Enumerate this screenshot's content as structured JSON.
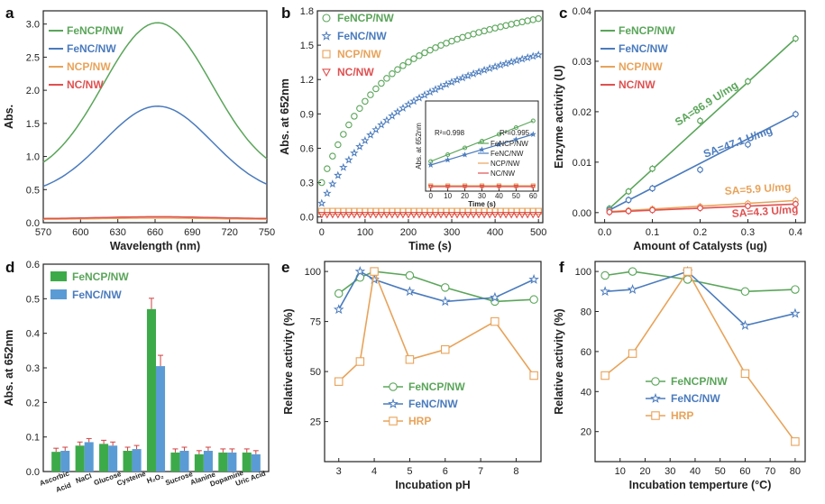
{
  "colors": {
    "green": "#5aa55a",
    "blue": "#4a7bbd",
    "orange": "#e8a35a",
    "red": "#e05050",
    "bar_green": "#3daa4a",
    "bar_blue": "#5b9bd5",
    "err": "#d04040"
  },
  "chart_data": [
    {
      "panel": "a",
      "type": "line",
      "xlabel": "Wavelength (nm)",
      "ylabel": "Abs.",
      "xlim": [
        570,
        750
      ],
      "ylim": [
        0,
        3.2
      ],
      "xticks": [
        570,
        600,
        630,
        660,
        690,
        720,
        750
      ],
      "yticks": [
        0.0,
        0.5,
        1.0,
        1.5,
        2.0,
        2.5,
        3.0
      ],
      "series": [
        {
          "name": "FeNCP/NW",
          "color": "green",
          "peak": 3.02,
          "center": 662,
          "width": 62,
          "base": 0.65
        },
        {
          "name": "FeNC/NW",
          "color": "blue",
          "peak": 1.76,
          "center": 662,
          "width": 62,
          "base": 0.4
        },
        {
          "name": "NCP/NW",
          "color": "orange",
          "peak": 0.07,
          "center": 662,
          "width": 62,
          "base": 0.05
        },
        {
          "name": "NC/NW",
          "color": "red",
          "peak": 0.09,
          "center": 662,
          "width": 62,
          "base": 0.06
        }
      ]
    },
    {
      "panel": "b",
      "type": "scatter",
      "xlabel": "Time (s)",
      "ylabel": "Abs. at 652nm",
      "xlim": [
        -10,
        510
      ],
      "ylim": [
        -0.05,
        1.8
      ],
      "xticks": [
        0,
        100,
        200,
        300,
        400,
        500
      ],
      "yticks": [
        0.0,
        0.3,
        0.6,
        0.9,
        1.2,
        1.5,
        1.8
      ],
      "series": [
        {
          "name": "FeNCP/NW",
          "color": "green",
          "marker": "circle",
          "vmax": 1.75,
          "v0": 0.3,
          "tau": 120,
          "lin": 0.0006
        },
        {
          "name": "FeNC/NW",
          "color": "blue",
          "marker": "star",
          "vmax": 1.45,
          "v0": 0.12,
          "tau": 150,
          "lin": 0.0007
        },
        {
          "name": "NCP/NW",
          "color": "orange",
          "marker": "square",
          "vmax": 0.05,
          "v0": 0.05,
          "tau": 100,
          "lin": 0.0
        },
        {
          "name": "NC/NW",
          "color": "red",
          "marker": "triangle",
          "vmax": 0.02,
          "v0": 0.02,
          "tau": 100,
          "lin": 0.0
        }
      ],
      "inset": {
        "xlabel": "Time (s)",
        "ylabel": "Abs. at 652nm",
        "xlim": [
          -3,
          63
        ],
        "ylim": [
          0,
          1
        ],
        "xticks": [
          0,
          10,
          20,
          30,
          40,
          50,
          60
        ],
        "r2_green": "R²=0.998",
        "r2_blue": "R²=0.995",
        "legend": [
          "FeNCP/NW",
          "FeNC/NW",
          "NCP/NW",
          "NC/NW"
        ],
        "lines": [
          {
            "color": "green",
            "y0": 0.33,
            "y1": 0.78
          },
          {
            "color": "blue",
            "y0": 0.29,
            "y1": 0.63
          },
          {
            "color": "orange",
            "y0": 0.06,
            "y1": 0.06
          },
          {
            "color": "red",
            "y0": 0.05,
            "y1": 0.05
          }
        ]
      }
    },
    {
      "panel": "c",
      "type": "scatter",
      "xlabel": "Amount of Catalysts (ug)",
      "ylabel": "Enzyme activity (U)",
      "xlim": [
        -0.02,
        0.42
      ],
      "ylim": [
        -0.002,
        0.04
      ],
      "xticks": [
        0.0,
        0.1,
        0.2,
        0.3,
        0.4
      ],
      "yticks": [
        0.0,
        0.01,
        0.02,
        0.03,
        0.04
      ],
      "x": [
        0.01,
        0.05,
        0.1,
        0.2,
        0.3,
        0.4
      ],
      "series": [
        {
          "name": "FeNCP/NW",
          "color": "green",
          "values": [
            0.0008,
            0.0042,
            0.0087,
            0.0182,
            0.026,
            0.0345
          ]
        },
        {
          "name": "FeNC/NW",
          "color": "blue",
          "values": [
            0.0005,
            0.0025,
            0.0048,
            0.0085,
            0.0135,
            0.0195
          ]
        },
        {
          "name": "NCP/NW",
          "color": "orange",
          "values": [
            0.0002,
            0.0004,
            0.0007,
            0.0012,
            0.0018,
            0.0024
          ]
        },
        {
          "name": "NC/NW",
          "color": "red",
          "values": [
            0.0001,
            0.0003,
            0.0005,
            0.0009,
            0.0013,
            0.0017
          ]
        }
      ],
      "annotations": [
        "SA=86.9 U/mg",
        "SA=47.1 U/mg",
        "SA=5.9 U/mg",
        "SA=4.3 U/mg"
      ]
    },
    {
      "panel": "d",
      "type": "bar",
      "ylabel": "Abs. at 652nm",
      "ylim": [
        0,
        0.6
      ],
      "yticks": [
        0.0,
        0.1,
        0.2,
        0.3,
        0.4,
        0.5,
        0.6
      ],
      "categories": [
        "Ascorbic Acid",
        "NaCl",
        "Glucose",
        "Cysteine",
        "H2O2",
        "Sucrose",
        "Alanine",
        "Dopamine",
        "Uric Acid"
      ],
      "tick_labels": [
        "Ascorbic",
        "Acid",
        "NaCl",
        "Glucose",
        "Cysteine",
        "H₂O₂",
        "Sucrose",
        "Alanine",
        "Dopamine",
        "Uric Acid"
      ],
      "series": [
        {
          "name": "FeNCP/NW",
          "values": [
            0.057,
            0.075,
            0.08,
            0.06,
            0.47,
            0.055,
            0.05,
            0.055,
            0.055
          ]
        },
        {
          "name": "FeNC/NW",
          "values": [
            0.06,
            0.085,
            0.075,
            0.065,
            0.305,
            0.06,
            0.06,
            0.055,
            0.05
          ]
        }
      ]
    },
    {
      "panel": "e",
      "type": "line",
      "xlabel": "Incubation pH",
      "ylabel": "Relative activity (%)",
      "xlim": [
        2.6,
        8.7
      ],
      "ylim": [
        5,
        105
      ],
      "xticks": [
        3,
        4,
        5,
        6,
        7,
        8
      ],
      "yticks": [
        25,
        50,
        75,
        100
      ],
      "series": [
        {
          "name": "FeNCP/NW",
          "color": "green",
          "marker": "circle",
          "x": [
            3,
            3.6,
            4,
            5,
            6,
            7.4,
            8.5
          ],
          "values": [
            89,
            97,
            100,
            98,
            92,
            85,
            86
          ]
        },
        {
          "name": "FeNC/NW",
          "color": "blue",
          "marker": "star",
          "x": [
            3,
            3.6,
            4,
            5,
            6,
            7.4,
            8.5
          ],
          "values": [
            81,
            100,
            96,
            90,
            85,
            87,
            96
          ]
        },
        {
          "name": "HRP",
          "color": "orange",
          "marker": "square",
          "x": [
            3,
            3.6,
            4,
            5,
            6,
            7.4,
            8.5
          ],
          "values": [
            45,
            55,
            100,
            56,
            61,
            75,
            48
          ]
        }
      ]
    },
    {
      "panel": "f",
      "type": "line",
      "xlabel": "Incubation temperture (°C)",
      "ylabel": "Relative activity (%)",
      "xlim": [
        0,
        84
      ],
      "ylim": [
        5,
        105
      ],
      "xticks": [
        10,
        20,
        30,
        40,
        50,
        60,
        70,
        80
      ],
      "yticks": [
        20,
        40,
        60,
        80,
        100
      ],
      "series": [
        {
          "name": "FeNCP/NW",
          "color": "green",
          "marker": "circle",
          "x": [
            4,
            15,
            37,
            60,
            80
          ],
          "values": [
            98,
            100,
            96,
            90,
            91
          ]
        },
        {
          "name": "FeNC/NW",
          "color": "blue",
          "marker": "star",
          "x": [
            4,
            15,
            37,
            60,
            80
          ],
          "values": [
            90,
            91,
            100,
            73,
            79
          ]
        },
        {
          "name": "HRP",
          "color": "orange",
          "marker": "square",
          "x": [
            4,
            15,
            37,
            60,
            80
          ],
          "values": [
            48,
            59,
            100,
            49,
            15
          ]
        }
      ]
    }
  ]
}
